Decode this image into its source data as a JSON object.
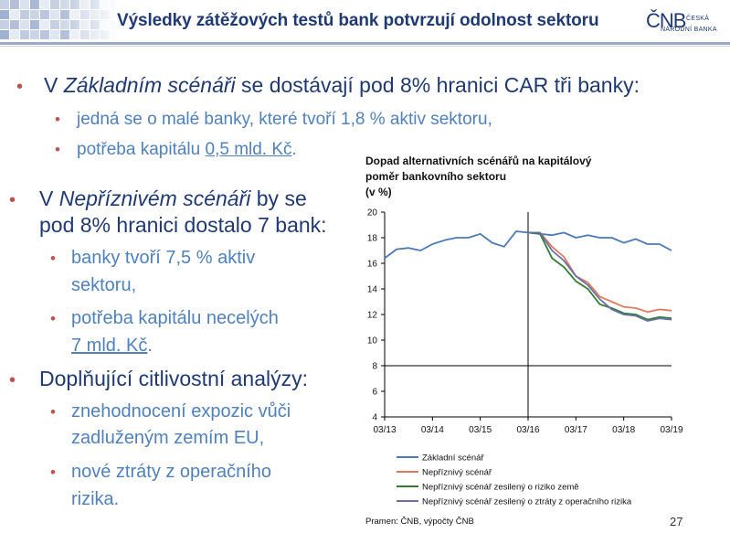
{
  "slide": {
    "title": "Výsledky zátěžových testů bank potvrzují odolnost sektoru",
    "logo": {
      "main": "ČNB",
      "sub1": "ČESKÁ",
      "sub2": "NÁRODNÍ BANKA"
    },
    "page_number": "27"
  },
  "bullets": {
    "b1": {
      "pre": "V ",
      "em": "Základním scénáři",
      "post": " se dostávají pod 8% hranici CAR tři banky:"
    },
    "b1_s1": "jedná se o malé banky, které tvoří 1,8 % aktiv sektoru,",
    "b1_s2": {
      "pre": "potřeba kapitálu ",
      "u": "0,5 mld. Kč",
      "post": "."
    },
    "b2": {
      "pre": "V ",
      "em": "Nepříznivém scénáři",
      "post_line1": " by se",
      "line2": "pod 8% hranici dostalo 7 bank:"
    },
    "b2_s1": {
      "line1": "banky tvoří 7,5 % aktiv",
      "line2": "sektoru,"
    },
    "b2_s2": {
      "line1": "potřeba kapitálu necelých",
      "u": "7 mld. Kč",
      "post": "."
    },
    "b3": "Doplňující citlivostní analýzy:",
    "b3_s1": {
      "line1": "znehodnocení expozic vůči",
      "line2": "zadluženým zemím EU,"
    },
    "b3_s2": {
      "line1": "nové ztráty z operačního",
      "line2": "rizika."
    }
  },
  "chart_data": {
    "type": "line",
    "title_line1": "Dopad alternativních scénářů na kapitálový",
    "title_line2": "poměr bankovního sektoru",
    "ylabel": "(v %)",
    "ylim": [
      4,
      20
    ],
    "yticks": [
      "4",
      "6",
      "8",
      "10",
      "12",
      "14",
      "16",
      "18",
      "20"
    ],
    "xlim": [
      2013.25,
      2019.25
    ],
    "xticks": [
      {
        "label": "03/13",
        "x": 2013.25
      },
      {
        "label": "03/14",
        "x": 2014.25
      },
      {
        "label": "03/15",
        "x": 2015.25
      },
      {
        "label": "03/16",
        "x": 2016.25
      },
      {
        "label": "03/17",
        "x": 2017.25
      },
      {
        "label": "03/18",
        "x": 2018.25
      },
      {
        "label": "03/19",
        "x": 2019.25
      }
    ],
    "threshold": 8,
    "vertical_marker": 2016.25,
    "grid": false,
    "legend_position": "bottom",
    "series": [
      {
        "name": "Základní scénář",
        "color": "#4a7ab8",
        "x": [
          2013.25,
          2013.5,
          2013.75,
          2014.0,
          2014.25,
          2014.5,
          2014.75,
          2015.0,
          2015.25,
          2015.5,
          2015.75,
          2016.0,
          2016.25,
          2016.5,
          2016.75,
          2017.0,
          2017.25,
          2017.5,
          2017.75,
          2018.0,
          2018.25,
          2018.5,
          2018.75,
          2019.0,
          2019.25
        ],
        "y": [
          16.4,
          17.1,
          17.2,
          17.0,
          17.5,
          17.8,
          18.0,
          18.0,
          18.3,
          17.6,
          17.3,
          18.5,
          18.4,
          18.3,
          18.2,
          18.4,
          18.0,
          18.2,
          18.0,
          18.0,
          17.6,
          17.9,
          17.5,
          17.5,
          17.0
        ]
      },
      {
        "name": "Nepříznivý scénář",
        "color": "#e07a5f",
        "x": [
          2016.25,
          2016.5,
          2016.75,
          2017.0,
          2017.25,
          2017.5,
          2017.75,
          2018.0,
          2018.25,
          2018.5,
          2018.75,
          2019.0,
          2019.25
        ],
        "y": [
          18.4,
          18.4,
          17.3,
          16.5,
          15.0,
          14.5,
          13.4,
          13.0,
          12.6,
          12.5,
          12.2,
          12.4,
          12.3
        ]
      },
      {
        "name": "Nepříznivý scénář zesilený o riziko země",
        "color": "#2e7d32",
        "x": [
          2016.25,
          2016.5,
          2016.75,
          2017.0,
          2017.25,
          2017.5,
          2017.75,
          2018.0,
          2018.25,
          2018.5,
          2018.75,
          2019.0,
          2019.25
        ],
        "y": [
          18.4,
          18.3,
          16.4,
          15.7,
          14.6,
          14.0,
          12.8,
          12.5,
          12.1,
          12.0,
          11.6,
          11.8,
          11.7
        ]
      },
      {
        "name": "Nepříznivý scénář zesilený o ztráty z operačního rizika",
        "color": "#6b6fa8",
        "x": [
          2016.25,
          2016.5,
          2016.75,
          2017.0,
          2017.25,
          2017.5,
          2017.75,
          2018.0,
          2018.25,
          2018.5,
          2018.75,
          2019.0,
          2019.25
        ],
        "y": [
          18.4,
          18.4,
          17.0,
          16.2,
          15.0,
          14.3,
          13.2,
          12.4,
          12.0,
          11.9,
          11.5,
          11.7,
          11.6
        ]
      }
    ],
    "source": "Pramen: ČNB, výpočty ČNB"
  }
}
